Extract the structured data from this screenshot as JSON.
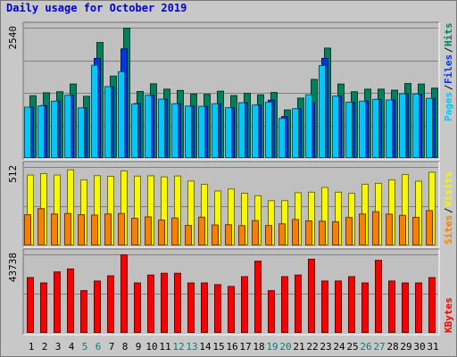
{
  "title": "Daily usage for October 2019",
  "colors": {
    "background": "#c8c8c8",
    "panel": "#c0c0c0",
    "title": "#0000cc",
    "hits": "#00805c",
    "files": "#0038e0",
    "pages": "#00c8f8",
    "visits": "#f8f800",
    "sites": "#f88000",
    "kbytes": "#f80000",
    "weekend_label": "#008080",
    "weekday_label": "#000000"
  },
  "chart_data": [
    {
      "type": "bar",
      "categories": [
        "1",
        "2",
        "3",
        "4",
        "5",
        "6",
        "7",
        "8",
        "9",
        "10",
        "11",
        "12",
        "13",
        "14",
        "15",
        "16",
        "17",
        "18",
        "19",
        "20",
        "21",
        "22",
        "23",
        "24",
        "25",
        "26",
        "27",
        "28",
        "29",
        "30",
        "31"
      ],
      "weekend_days": [
        "5",
        "6",
        "12",
        "13",
        "19",
        "20",
        "26",
        "27"
      ],
      "ytick": "2540",
      "ylim": [
        0,
        2540
      ],
      "series": [
        {
          "name": "Hits",
          "values": [
            1222,
            1280,
            1300,
            1450,
            1210,
            2260,
            1605,
            2540,
            1305,
            1455,
            1350,
            1325,
            1255,
            1250,
            1310,
            1225,
            1270,
            1240,
            1285,
            945,
            1175,
            1540,
            2150,
            1450,
            1300,
            1350,
            1350,
            1330,
            1460,
            1450,
            1370
          ]
        },
        {
          "name": "Files",
          "values": [
            1000,
            1030,
            1115,
            1230,
            985,
            1950,
            1400,
            2135,
            1070,
            1230,
            1155,
            1065,
            1020,
            1015,
            1065,
            990,
            1085,
            1040,
            1135,
            815,
            970,
            1080,
            1950,
            1215,
            1095,
            1115,
            1150,
            1140,
            1260,
            1255,
            1170
          ]
        },
        {
          "name": "Pages",
          "values": [
            1000,
            1025,
            1115,
            1230,
            985,
            1815,
            1400,
            1690,
            1060,
            1230,
            1155,
            1065,
            1020,
            1015,
            1065,
            990,
            1085,
            1040,
            1095,
            780,
            970,
            1240,
            1810,
            1215,
            1095,
            1115,
            1150,
            1140,
            1260,
            1255,
            1170
          ]
        }
      ],
      "legend": [
        "Pages",
        "Files",
        "Hits"
      ]
    },
    {
      "type": "bar",
      "ytick": "512",
      "ylim": [
        0,
        512
      ],
      "series": [
        {
          "name": "Visits",
          "values": [
            462,
            471,
            462,
            496,
            430,
            458,
            454,
            489,
            455,
            457,
            450,
            456,
            423,
            401,
            358,
            371,
            343,
            327,
            295,
            295,
            347,
            350,
            381,
            350,
            343,
            402,
            408,
            430,
            465,
            422,
            480
          ]
        },
        {
          "name": "Sites",
          "values": [
            203,
            243,
            208,
            211,
            203,
            201,
            208,
            211,
            180,
            189,
            168,
            182,
            133,
            187,
            136,
            138,
            132,
            165,
            133,
            144,
            172,
            163,
            161,
            157,
            185,
            208,
            223,
            207,
            199,
            186,
            230
          ]
        }
      ],
      "legend": [
        "Sites",
        "Visits"
      ]
    },
    {
      "type": "bar",
      "ytick": "43738",
      "ylim": [
        0,
        43738
      ],
      "series": [
        {
          "name": "KBytes",
          "values": [
            31052,
            28062,
            34201,
            35856,
            23776,
            29137,
            32017,
            43738,
            28062,
            32466,
            33446,
            33446,
            28062,
            28062,
            27122,
            26120,
            31553,
            40183,
            23776,
            31553,
            32466,
            41285,
            29137,
            29137,
            31553,
            28062,
            40660,
            29137,
            28062,
            28062,
            31052
          ]
        }
      ],
      "legend": [
        "KBytes"
      ]
    }
  ]
}
